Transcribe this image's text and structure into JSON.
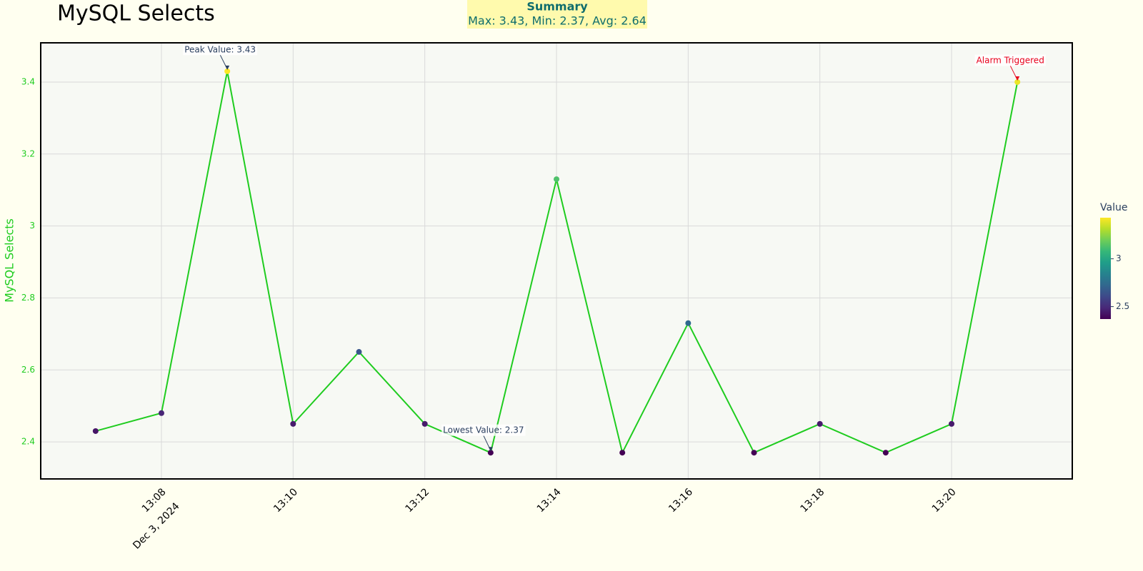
{
  "chart_data": {
    "type": "line",
    "title": "MySQL Selects",
    "y_label": "MySQL Selects",
    "x": [
      "2024-12-03 13:07",
      "2024-12-03 13:08",
      "2024-12-03 13:09",
      "2024-12-03 13:10",
      "2024-12-03 13:11",
      "2024-12-03 13:12",
      "2024-12-03 13:13",
      "2024-12-03 13:14",
      "2024-12-03 13:15",
      "2024-12-03 13:16",
      "2024-12-03 13:17",
      "2024-12-03 13:18",
      "2024-12-03 13:19",
      "2024-12-03 13:20",
      "2024-12-03 13:21"
    ],
    "series": [
      {
        "name": "MySQL Selects",
        "color": "#1fcc1f",
        "values": [
          2.43,
          2.48,
          3.43,
          2.45,
          2.65,
          2.45,
          2.37,
          3.13,
          2.37,
          2.73,
          2.37,
          2.45,
          2.37,
          2.45,
          3.4
        ]
      }
    ],
    "xlim": [
      "2024-12-03 13:06:10",
      "2024-12-03 13:21:50"
    ],
    "xticks": [
      {
        "value": "2024-12-03 13:08",
        "label": "13:08"
      },
      {
        "value": "2024-12-03 13:10",
        "label": "13:10"
      },
      {
        "value": "2024-12-03 13:12",
        "label": "13:12"
      },
      {
        "value": "2024-12-03 13:14",
        "label": "13:14"
      },
      {
        "value": "2024-12-03 13:16",
        "label": "13:16"
      },
      {
        "value": "2024-12-03 13:18",
        "label": "13:18"
      },
      {
        "value": "2024-12-03 13:20",
        "label": "13:20"
      }
    ],
    "x_date_label": "Dec 3, 2024",
    "ylim": [
      2.297,
      3.509
    ],
    "yticks": [
      2.4,
      2.6,
      2.8,
      3,
      3.2,
      3.4
    ],
    "grid": true,
    "colorscale": "Viridis",
    "colorbar": {
      "title": "Value",
      "range": [
        2.37,
        3.43
      ],
      "ticks": [
        2.5,
        3
      ]
    },
    "annotations": [
      {
        "text": "Peak Value: 3.43",
        "point": 2,
        "color": "#2a3f5f"
      },
      {
        "text": "Lowest Value: 2.37",
        "point": 6,
        "color": "#2a3f5f"
      },
      {
        "text": "Alarm Triggered",
        "point": 14,
        "color": "#e8001c"
      }
    ],
    "summary": {
      "title": "Summary",
      "text": "Max: 3.43, Min: 2.37, Avg: 2.64"
    }
  }
}
